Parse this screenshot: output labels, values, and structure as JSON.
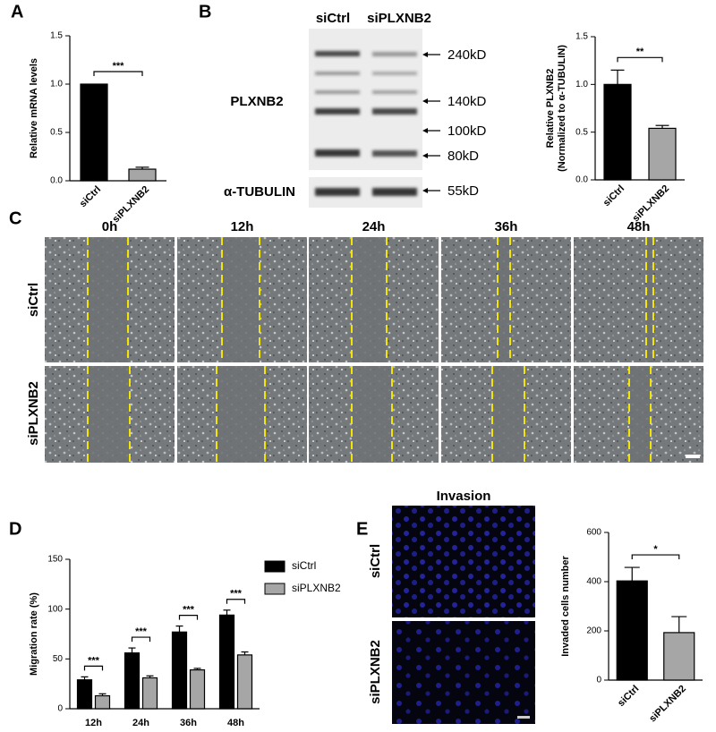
{
  "panels": [
    "A",
    "B",
    "C",
    "D",
    "E"
  ],
  "blot": {
    "lanes": [
      "siCtrl",
      "siPLXNB2"
    ],
    "proteins": [
      "PLXNB2",
      "α-TUBULIN"
    ],
    "markers": [
      "240kD",
      "140kD",
      "100kD",
      "80kD",
      "55kD"
    ]
  },
  "wound": {
    "times": [
      "0h",
      "12h",
      "24h",
      "36h",
      "48h"
    ],
    "rows": [
      "siCtrl",
      "siPLXNB2"
    ]
  },
  "invasion": {
    "title": "Invasion",
    "rows": [
      "siCtrl",
      "siPLXNB2"
    ]
  },
  "chart_data": [
    {
      "type": "bar",
      "ylabel": "Relative mRNA levels",
      "categories": [
        "siCtrl",
        "siPLXNB2"
      ],
      "values": [
        1.0,
        0.12
      ],
      "errors": [
        0,
        0.02
      ],
      "colors": [
        "#000000",
        "#a6a6a6"
      ],
      "ylim": [
        0,
        1.5
      ],
      "yticks": [
        {
          "value": 0,
          "label": "0.0"
        },
        0.5,
        {
          "value": 1,
          "label": "1.0"
        },
        1.5
      ],
      "significance": "***"
    },
    {
      "type": "bar",
      "ylabel": [
        "Relative PLXNB2",
        "(Normalized to α-TUBULIN)"
      ],
      "categories": [
        "siCtrl",
        "siPLXNB2"
      ],
      "values": [
        1.0,
        0.54
      ],
      "errors": [
        0.15,
        0.03
      ],
      "colors": [
        "#000000",
        "#a6a6a6"
      ],
      "ylim": [
        0,
        1.5
      ],
      "yticks": [
        {
          "value": 0,
          "label": "0.0"
        },
        0.5,
        {
          "value": 1,
          "label": "1.0"
        },
        1.5
      ],
      "significance": "**"
    },
    {
      "type": "grouped-bar",
      "ylabel": "Migration rate (%)",
      "categories": [
        "12h",
        "24h",
        "36h",
        "48h"
      ],
      "series": [
        {
          "name": "siCtrl",
          "color": "#000000",
          "values": [
            29,
            56,
            77,
            94
          ],
          "errors": [
            3,
            5,
            6,
            5
          ]
        },
        {
          "name": "siPLXNB2",
          "color": "#a6a6a6",
          "values": [
            13,
            31,
            39,
            54
          ],
          "errors": [
            2,
            2,
            1.5,
            3
          ]
        }
      ],
      "ylim": [
        0,
        150
      ],
      "yticks": [
        0,
        50,
        100,
        150
      ],
      "significance": [
        "***",
        "***",
        "***",
        "***"
      ],
      "legend": "right"
    },
    {
      "type": "bar",
      "ylabel": "Invaded cells number",
      "categories": [
        "siCtrl",
        "siPLXNB2"
      ],
      "values": [
        403,
        193
      ],
      "errors": [
        55,
        65
      ],
      "colors": [
        "#000000",
        "#a6a6a6"
      ],
      "ylim": [
        0,
        600
      ],
      "yticks": [
        0,
        200,
        400,
        600
      ],
      "significance": "*"
    }
  ]
}
